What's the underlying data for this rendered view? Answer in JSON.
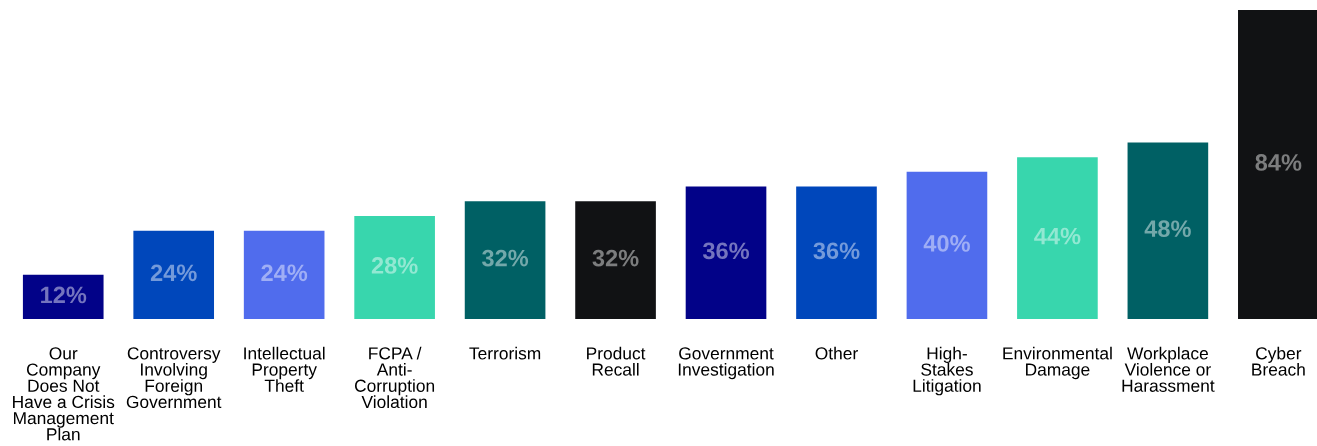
{
  "chart_data": {
    "type": "bar",
    "categories": [
      "Our\nCompany\nDoes Not\nHave a Crisis\nManagement\nPlan",
      "Controversy\nInvolving\nForeign\nGovernment",
      "Intellectual\nProperty\nTheft",
      "FCPA /\nAnti-\nCorruption\nViolation",
      "Terrorism",
      "Product\nRecall",
      "Government\nInvestigation",
      "Other",
      "High-\nStakes\nLitigation",
      "Environmental\nDamage",
      "Workplace\nViolence or\nHarassment",
      "Cyber\nBreach"
    ],
    "values": [
      12,
      24,
      24,
      28,
      32,
      32,
      36,
      36,
      40,
      44,
      48,
      84
    ],
    "colors": [
      "#020288",
      "#0047bb",
      "#506ced",
      "#38d6ad",
      "#006064",
      "#111214",
      "#020288",
      "#0047bb",
      "#506ced",
      "#38d6ad",
      "#006064",
      "#111214"
    ],
    "value_labels": [
      "12%",
      "24%",
      "24%",
      "28%",
      "32%",
      "32%",
      "36%",
      "36%",
      "40%",
      "44%",
      "48%",
      "84%"
    ]
  }
}
